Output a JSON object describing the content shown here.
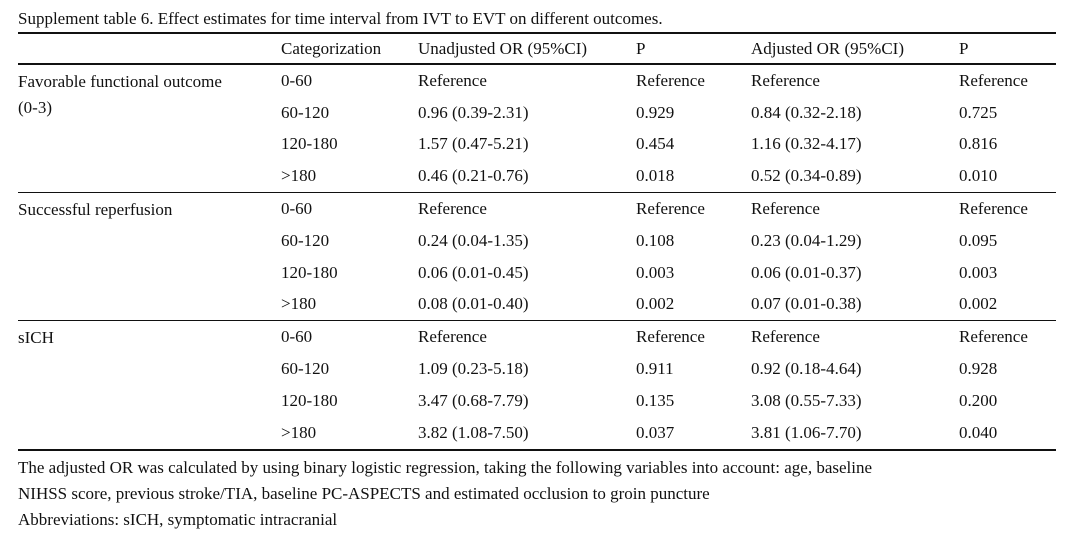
{
  "caption": "Supplement table 6. Effect estimates for time interval from IVT to EVT on different outcomes.",
  "headers": [
    "",
    "Categorization",
    "Unadjusted OR (95%CI)",
    "P",
    "Adjusted OR (95%CI)",
    "P"
  ],
  "groups": [
    {
      "outcome_line1": "Favorable functional outcome",
      "outcome_line2": "(0-3)",
      "rows": [
        {
          "cat": "0-60",
          "unadj": "Reference",
          "p1": "Reference",
          "adj": "Reference",
          "p2": "Reference"
        },
        {
          "cat": "60-120",
          "unadj": "0.96 (0.39-2.31)",
          "p1": "0.929",
          "adj": "0.84 (0.32-2.18)",
          "p2": "0.725"
        },
        {
          "cat": "120-180",
          "unadj": "1.57 (0.47-5.21)",
          "p1": "0.454",
          "adj": "1.16 (0.32-4.17)",
          "p2": "0.816"
        },
        {
          "cat": ">180",
          "unadj": "0.46 (0.21-0.76)",
          "p1": "0.018",
          "adj": "0.52 (0.34-0.89)",
          "p2": "0.010"
        }
      ]
    },
    {
      "outcome_line1": "Successful reperfusion",
      "outcome_line2": "",
      "rows": [
        {
          "cat": "0-60",
          "unadj": "Reference",
          "p1": "Reference",
          "adj": "Reference",
          "p2": "Reference"
        },
        {
          "cat": "60-120",
          "unadj": "0.24 (0.04-1.35)",
          "p1": "0.108",
          "adj": "0.23 (0.04-1.29)",
          "p2": "0.095"
        },
        {
          "cat": "120-180",
          "unadj": "0.06 (0.01-0.45)",
          "p1": "0.003",
          "adj": "0.06 (0.01-0.37)",
          "p2": "0.003"
        },
        {
          "cat": ">180",
          "unadj": "0.08 (0.01-0.40)",
          "p1": "0.002",
          "adj": "0.07 (0.01-0.38)",
          "p2": "0.002"
        }
      ]
    },
    {
      "outcome_line1": "sICH",
      "outcome_line2": "",
      "rows": [
        {
          "cat": "0-60",
          "unadj": "Reference",
          "p1": "Reference",
          "adj": "Reference",
          "p2": "Reference"
        },
        {
          "cat": "60-120",
          "unadj": "1.09 (0.23-5.18)",
          "p1": "0.911",
          "adj": "0.92 (0.18-4.64)",
          "p2": "0.928"
        },
        {
          "cat": "120-180",
          "unadj": "3.47 (0.68-7.79)",
          "p1": "0.135",
          "adj": "3.08 (0.55-7.33)",
          "p2": "0.200"
        },
        {
          "cat": ">180",
          "unadj": "3.82 (1.08-7.50)",
          "p1": "0.037",
          "adj": "3.81 (1.06-7.70)",
          "p2": "0.040"
        }
      ]
    }
  ],
  "notes": [
    "The adjusted OR was calculated by using binary logistic regression, taking the following variables into account: age, baseline",
    "NIHSS score, previous stroke/TIA, baseline PC-ASPECTS and estimated occlusion to groin puncture",
    "Abbreviations: sICH, symptomatic intracranial"
  ]
}
